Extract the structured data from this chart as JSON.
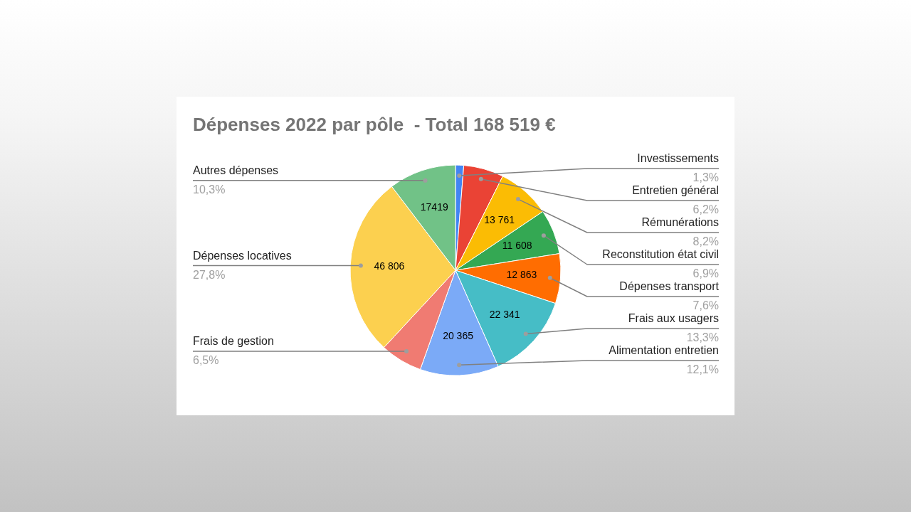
{
  "chart_data": {
    "type": "pie",
    "title": "Dépenses 2022 par pôle  - Total 168 519 €",
    "categories": [
      "Investissements",
      "Entretien général",
      "Rémunérations",
      "Reconstitution état civil",
      "Dépenses transport",
      "Frais aux usagers",
      "Alimentation entretien",
      "Frais de gestion",
      "Dépenses locatives",
      "Autres dépenses"
    ],
    "values": [
      2110,
      10370,
      13761,
      11608,
      12863,
      22341,
      20365,
      10880,
      46806,
      17419
    ],
    "colors": [
      "#4285f4",
      "#ea4335",
      "#fbbc04",
      "#34a853",
      "#ff6d01",
      "#46bdc6",
      "#7baaf7",
      "#f07b72",
      "#fcd04f",
      "#71c287"
    ],
    "value_labels": [
      null,
      null,
      "13 761",
      "11 608",
      "12 863",
      "22 341",
      "20 365",
      null,
      "46 806",
      "17419"
    ],
    "annotations": [
      {
        "text": "1,3%",
        "x": "Investissements"
      },
      {
        "text": "6,2%",
        "x": "Entretien général"
      },
      {
        "text": "8,2%",
        "x": "Rémunérations"
      },
      {
        "text": "6,9%",
        "x": "Reconstitution état civil"
      },
      {
        "text": "7,6%",
        "x": "Dépenses transport"
      },
      {
        "text": "13,3%",
        "x": "Frais aux usagers"
      },
      {
        "text": "12,1%",
        "x": "Alimentation entretien"
      },
      {
        "text": "6,5%",
        "x": "Frais de gestion"
      },
      {
        "text": "27,8%",
        "x": "Dépenses locatives"
      },
      {
        "text": "10,3%",
        "x": "Autres dépenses"
      }
    ]
  }
}
